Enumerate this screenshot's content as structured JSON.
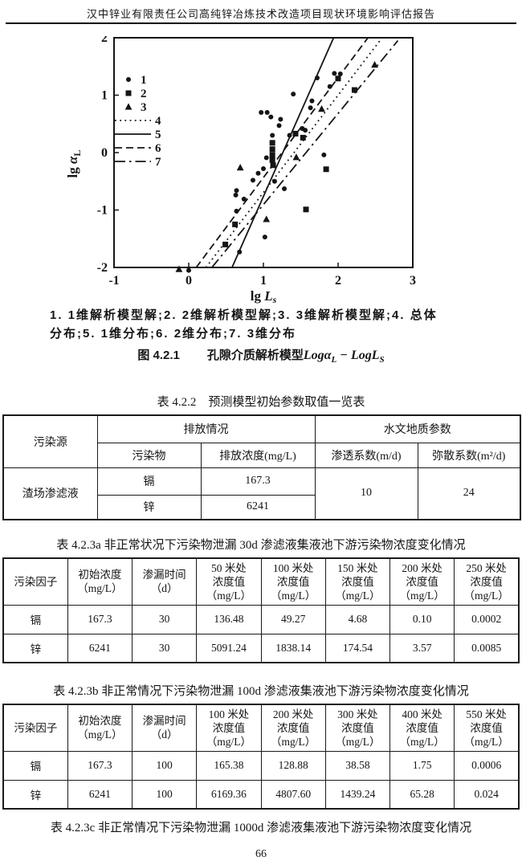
{
  "page": {
    "header": "汉中锌业有限责任公司高纯锌冶炼技术改造项目现状环境影响评估报告",
    "page_number": "66"
  },
  "colors": {
    "text": "#151515",
    "background": "#ffffff",
    "line": "#111111"
  },
  "figure": {
    "caption_line1": "1. 1维解析模型解;2. 2维解析模型解;3. 3维解析模型解;4. 总体",
    "caption_line2": "分布;5. 1维分布;6. 2维分布;7. 3维分布",
    "title_prefix": "图 4.2.1",
    "title_text": "孔隙介质解析模型",
    "formula": {
      "a": "Logα",
      "b": "L",
      "c": " − LogL",
      "d": "S"
    }
  },
  "chart_data": {
    "type": "scatter",
    "title": "",
    "xlabel": "lg Ls",
    "ylabel": "lg αL",
    "xlabel_parts": {
      "main": "lg ",
      "it": "L",
      "sub": "s"
    },
    "ylabel_parts": {
      "main": "lg ",
      "it": "α",
      "sub": "L"
    },
    "xlim": [
      -1,
      3
    ],
    "ylim": [
      -2,
      2
    ],
    "xticks": [
      -1,
      0,
      1,
      2,
      3
    ],
    "yticks": [
      -2,
      -1,
      0,
      1,
      2
    ],
    "grid": false,
    "legend_position": "upper-left",
    "series": [
      {
        "name": "1",
        "type": "scatter",
        "marker": "dot",
        "points": [
          [
            0.0,
            -2.05
          ],
          [
            0.68,
            -1.73
          ],
          [
            1.02,
            -1.47
          ],
          [
            0.64,
            -1.02
          ],
          [
            0.63,
            -0.74
          ],
          [
            0.74,
            -0.81
          ],
          [
            0.64,
            -0.66
          ],
          [
            0.86,
            -0.48
          ],
          [
            0.93,
            -0.36
          ],
          [
            1.0,
            -0.28
          ],
          [
            1.04,
            -0.09
          ],
          [
            1.15,
            -0.5
          ],
          [
            1.28,
            -0.63
          ],
          [
            1.81,
            -0.04
          ],
          [
            0.97,
            0.7
          ],
          [
            1.05,
            0.7
          ],
          [
            1.1,
            0.62
          ],
          [
            1.12,
            0.3
          ],
          [
            1.21,
            0.47
          ],
          [
            1.23,
            0.58
          ],
          [
            1.35,
            0.3
          ],
          [
            1.4,
            1.02
          ],
          [
            1.52,
            0.42
          ],
          [
            1.56,
            0.39
          ],
          [
            1.63,
            0.78
          ],
          [
            1.65,
            0.9
          ],
          [
            1.72,
            1.3
          ],
          [
            1.89,
            1.15
          ],
          [
            1.95,
            1.38
          ],
          [
            2.03,
            1.37
          ]
        ]
      },
      {
        "name": "2",
        "type": "scatter",
        "marker": "square",
        "points": [
          [
            0.49,
            -1.6
          ],
          [
            0.62,
            -1.25
          ],
          [
            1.12,
            0.17
          ],
          [
            1.12,
            0.06
          ],
          [
            1.12,
            -0.04
          ],
          [
            1.12,
            -0.13
          ],
          [
            1.13,
            -0.22
          ],
          [
            1.43,
            0.33
          ],
          [
            1.53,
            0.26
          ],
          [
            1.84,
            -0.29
          ],
          [
            1.57,
            -0.99
          ],
          [
            2.0,
            1.29
          ],
          [
            2.22,
            1.09
          ]
        ]
      },
      {
        "name": "3",
        "type": "scatter",
        "marker": "triangle",
        "points": [
          [
            -0.13,
            -2.03
          ],
          [
            0.69,
            -0.26
          ],
          [
            1.04,
            -1.16
          ],
          [
            1.44,
            -0.08
          ],
          [
            1.78,
            0.76
          ],
          [
            2.49,
            1.53
          ]
        ]
      },
      {
        "name": "4",
        "type": "line",
        "style": "dotted",
        "points": [
          [
            0.23,
            -2.0
          ],
          [
            2.59,
            2.0
          ]
        ]
      },
      {
        "name": "5",
        "type": "line",
        "style": "solid",
        "points": [
          [
            0.58,
            -2.0
          ],
          [
            1.94,
            2.0
          ]
        ]
      },
      {
        "name": "6",
        "type": "line",
        "style": "dashed",
        "points": [
          [
            0.1,
            -2.0
          ],
          [
            2.4,
            2.0
          ]
        ]
      },
      {
        "name": "7",
        "type": "line",
        "style": "dashdot",
        "points": [
          [
            0.31,
            -2.0
          ],
          [
            2.8,
            1.95
          ]
        ]
      }
    ]
  },
  "table_422": {
    "title": "表 4.2.2　预测模型初始参数取值一览表",
    "col_source": "污染源",
    "group_emission": "排放情况",
    "group_hydro": "水文地质参数",
    "col_pollutant": "污染物",
    "col_conc": "排放浓度(mg/L)",
    "col_permeability": "渗透系数(m/d)",
    "col_dispersion": "弥散系数(m²/d)",
    "source": "渣场渗滤液",
    "rows": [
      {
        "pollutant": "镉",
        "conc": "167.3"
      },
      {
        "pollutant": "锌",
        "conc": "6241"
      }
    ],
    "permeability": "10",
    "dispersion": "24"
  },
  "table_423a": {
    "title": "表 4.2.3a 非正常状况下污染物泄漏 30d 渗滤液集液池下游污染物浓度变化情况",
    "headers": [
      "污染因子",
      "初始浓度\n（mg/L）",
      "渗漏时间\n（d）",
      "50 米处\n浓度值\n（mg/L）",
      "100 米处\n浓度值\n（mg/L）",
      "150 米处\n浓度值\n（mg/L）",
      "200 米处\n浓度值\n（mg/L）",
      "250 米处\n浓度值\n（mg/L）"
    ],
    "rows": [
      [
        "镉",
        "167.3",
        "30",
        "136.48",
        "49.27",
        "4.68",
        "0.10",
        "0.0002"
      ],
      [
        "锌",
        "6241",
        "30",
        "5091.24",
        "1838.14",
        "174.54",
        "3.57",
        "0.0085"
      ]
    ]
  },
  "table_423b": {
    "title": "表 4.2.3b 非正常情况下污染物泄漏 100d 渗滤液集液池下游污染物浓度变化情况",
    "headers": [
      "污染因子",
      "初始浓度\n（mg/L）",
      "渗漏时间\n（d）",
      "100 米处\n浓度值\n（mg/L）",
      "200 米处\n浓度值\n（mg/L）",
      "300 米处\n浓度值\n（mg/L）",
      "400 米处\n浓度值\n（mg/L）",
      "550 米处\n浓度值\n（mg/L）"
    ],
    "rows": [
      [
        "镉",
        "167.3",
        "100",
        "165.38",
        "128.88",
        "38.58",
        "1.75",
        "0.0006"
      ],
      [
        "锌",
        "6241",
        "100",
        "6169.36",
        "4807.60",
        "1439.24",
        "65.28",
        "0.024"
      ]
    ]
  },
  "table_423c": {
    "title": "表 4.2.3c 非正常情况下污染物泄漏 1000d 渗滤液集液池下游污染物浓度变化情况"
  }
}
